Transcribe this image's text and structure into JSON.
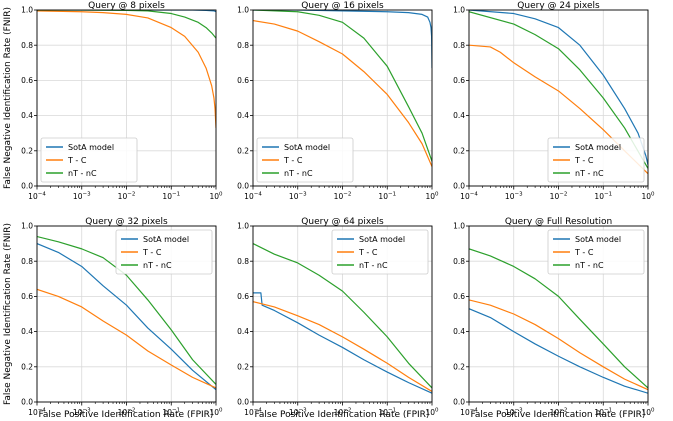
{
  "figure": {
    "ylabel_top": "False Negative Identification Rate (FNIR)",
    "ylabel_bottom": "False Negative Identification Rate (FNIR)",
    "xlabel_bottom": "False Positive Identification Rate (FPIR)"
  },
  "colors": {
    "sota": "#1f77b4",
    "tc": "#ff7f0e",
    "ntnc": "#2ca02c"
  },
  "chart_data": [
    {
      "type": "line",
      "title": "Query @ 8 pixels",
      "xscale": "log",
      "xlim": [
        0.0001,
        1
      ],
      "ylim": [
        0,
        1
      ],
      "xticks": [
        0.0001,
        0.001,
        0.01,
        0.1,
        1
      ],
      "xtick_labels": [
        "10-4",
        "10-3",
        "10-2",
        "10-1",
        "100"
      ],
      "yticks": [
        "0.0",
        "0.2",
        "0.4",
        "0.6",
        "0.8",
        "1.0"
      ],
      "grid": true,
      "legend": "bottom-left",
      "series": [
        {
          "name": "SotA model",
          "color": "#1f77b4",
          "x": [
            0.0001,
            0.001,
            0.01,
            0.1,
            0.3,
            0.6,
            0.9,
            1
          ],
          "y": [
            1.0,
            1.0,
            1.0,
            1.0,
            1.0,
            0.998,
            0.995,
            0.99
          ]
        },
        {
          "name": "T - C",
          "color": "#ff7f0e",
          "x": [
            0.0001,
            0.001,
            0.003,
            0.01,
            0.03,
            0.1,
            0.2,
            0.4,
            0.6,
            0.8,
            0.9,
            0.95,
            1
          ],
          "y": [
            0.995,
            0.99,
            0.985,
            0.975,
            0.955,
            0.9,
            0.85,
            0.76,
            0.67,
            0.57,
            0.5,
            0.44,
            0.33
          ]
        },
        {
          "name": "nT - nC",
          "color": "#2ca02c",
          "x": [
            0.0001,
            0.001,
            0.01,
            0.03,
            0.1,
            0.2,
            0.4,
            0.6,
            0.8,
            1
          ],
          "y": [
            1.0,
            1.0,
            0.998,
            0.995,
            0.98,
            0.96,
            0.93,
            0.9,
            0.87,
            0.84
          ]
        }
      ]
    },
    {
      "type": "line",
      "title": "Query @ 16 pixels",
      "xscale": "log",
      "xlim": [
        0.0001,
        1
      ],
      "ylim": [
        0,
        1
      ],
      "xticks": [
        0.0001,
        0.001,
        0.01,
        0.1,
        1
      ],
      "xtick_labels": [
        "10-4",
        "10-3",
        "10-2",
        "10-1",
        "100"
      ],
      "yticks": [
        "0.0",
        "0.2",
        "0.4",
        "0.6",
        "0.8",
        "1.0"
      ],
      "grid": true,
      "legend": "bottom-left",
      "series": [
        {
          "name": "SotA model",
          "color": "#1f77b4",
          "x": [
            0.0001,
            0.001,
            0.01,
            0.1,
            0.3,
            0.6,
            0.8,
            0.9,
            0.95,
            0.98,
            1
          ],
          "y": [
            1.0,
            1.0,
            0.995,
            0.99,
            0.985,
            0.975,
            0.96,
            0.93,
            0.9,
            0.85,
            0.67
          ]
        },
        {
          "name": "T - C",
          "color": "#ff7f0e",
          "x": [
            0.0001,
            0.0003,
            0.001,
            0.003,
            0.01,
            0.03,
            0.1,
            0.3,
            0.6,
            1
          ],
          "y": [
            0.94,
            0.92,
            0.88,
            0.82,
            0.75,
            0.65,
            0.52,
            0.36,
            0.24,
            0.11
          ]
        },
        {
          "name": "nT - nC",
          "color": "#2ca02c",
          "x": [
            0.0001,
            0.001,
            0.003,
            0.01,
            0.03,
            0.1,
            0.3,
            0.6,
            1
          ],
          "y": [
            1.0,
            0.99,
            0.97,
            0.93,
            0.84,
            0.68,
            0.45,
            0.3,
            0.14
          ]
        }
      ]
    },
    {
      "type": "line",
      "title": "Query @ 24 pixels",
      "xscale": "log",
      "xlim": [
        0.0001,
        1
      ],
      "ylim": [
        0,
        1
      ],
      "xticks": [
        0.0001,
        0.001,
        0.01,
        0.1,
        1
      ],
      "xtick_labels": [
        "10-4",
        "10-3",
        "10-2",
        "10-1",
        "100"
      ],
      "yticks": [
        "0.0",
        "0.2",
        "0.4",
        "0.6",
        "0.8",
        "1.0"
      ],
      "grid": true,
      "legend": "bottom-right",
      "series": [
        {
          "name": "SotA model",
          "color": "#1f77b4",
          "x": [
            0.0001,
            0.001,
            0.003,
            0.01,
            0.03,
            0.1,
            0.3,
            0.6,
            0.9,
            1
          ],
          "y": [
            1.0,
            0.98,
            0.95,
            0.9,
            0.8,
            0.63,
            0.44,
            0.3,
            0.17,
            0.12
          ]
        },
        {
          "name": "T - C",
          "color": "#ff7f0e",
          "x": [
            0.0001,
            0.0003,
            0.0005,
            0.001,
            0.003,
            0.01,
            0.03,
            0.1,
            0.3,
            1
          ],
          "y": [
            0.8,
            0.79,
            0.76,
            0.7,
            0.62,
            0.54,
            0.44,
            0.32,
            0.2,
            0.07
          ]
        },
        {
          "name": "nT - nC",
          "color": "#2ca02c",
          "x": [
            0.0001,
            0.001,
            0.003,
            0.01,
            0.03,
            0.1,
            0.3,
            1
          ],
          "y": [
            0.99,
            0.92,
            0.86,
            0.78,
            0.66,
            0.5,
            0.33,
            0.1
          ]
        }
      ]
    },
    {
      "type": "line",
      "title": "Query @ 32 pixels",
      "xscale": "log",
      "xlim": [
        0.0001,
        1
      ],
      "ylim": [
        0,
        1
      ],
      "xticks": [
        0.0001,
        0.001,
        0.01,
        0.1,
        1
      ],
      "xtick_labels": [
        "10-4",
        "10-3",
        "10-2",
        "10-1",
        "100"
      ],
      "yticks": [
        "0.0",
        "0.2",
        "0.4",
        "0.6",
        "0.8",
        "1.0"
      ],
      "grid": true,
      "legend": "top-right",
      "series": [
        {
          "name": "SotA model",
          "color": "#1f77b4",
          "x": [
            0.0001,
            0.0003,
            0.001,
            0.003,
            0.01,
            0.03,
            0.1,
            0.3,
            1
          ],
          "y": [
            0.9,
            0.85,
            0.77,
            0.66,
            0.55,
            0.42,
            0.3,
            0.18,
            0.07
          ]
        },
        {
          "name": "T - C",
          "color": "#ff7f0e",
          "x": [
            0.0001,
            0.0003,
            0.001,
            0.003,
            0.01,
            0.03,
            0.1,
            0.3,
            1
          ],
          "y": [
            0.64,
            0.6,
            0.54,
            0.46,
            0.38,
            0.29,
            0.21,
            0.14,
            0.08
          ]
        },
        {
          "name": "nT - nC",
          "color": "#2ca02c",
          "x": [
            0.0001,
            0.0003,
            0.001,
            0.003,
            0.01,
            0.03,
            0.1,
            0.3,
            1
          ],
          "y": [
            0.94,
            0.91,
            0.87,
            0.82,
            0.72,
            0.58,
            0.41,
            0.24,
            0.1
          ]
        }
      ]
    },
    {
      "type": "line",
      "title": "Query @ 64 pixels",
      "xscale": "log",
      "xlim": [
        0.0001,
        1
      ],
      "ylim": [
        0,
        1
      ],
      "xticks": [
        0.0001,
        0.001,
        0.01,
        0.1,
        1
      ],
      "xtick_labels": [
        "10-4",
        "10-3",
        "10-2",
        "10-1",
        "100"
      ],
      "yticks": [
        "0.0",
        "0.2",
        "0.4",
        "0.6",
        "0.8",
        "1.0"
      ],
      "grid": true,
      "legend": "top-right",
      "series": [
        {
          "name": "SotA model",
          "color": "#1f77b4",
          "x": [
            0.0001,
            0.00015,
            0.00016,
            0.0003,
            0.001,
            0.003,
            0.01,
            0.03,
            0.1,
            0.3,
            1
          ],
          "y": [
            0.62,
            0.62,
            0.55,
            0.52,
            0.45,
            0.38,
            0.31,
            0.24,
            0.17,
            0.11,
            0.05
          ]
        },
        {
          "name": "T - C",
          "color": "#ff7f0e",
          "x": [
            0.0001,
            0.0003,
            0.001,
            0.003,
            0.01,
            0.03,
            0.1,
            0.3,
            1
          ],
          "y": [
            0.57,
            0.54,
            0.49,
            0.44,
            0.37,
            0.3,
            0.22,
            0.14,
            0.06
          ]
        },
        {
          "name": "nT - nC",
          "color": "#2ca02c",
          "x": [
            0.0001,
            0.0003,
            0.001,
            0.003,
            0.01,
            0.03,
            0.1,
            0.3,
            1
          ],
          "y": [
            0.9,
            0.84,
            0.79,
            0.72,
            0.63,
            0.51,
            0.37,
            0.22,
            0.08
          ]
        }
      ]
    },
    {
      "type": "line",
      "title": "Query @ Full Resolution",
      "xscale": "log",
      "xlim": [
        0.0001,
        1
      ],
      "ylim": [
        0,
        1
      ],
      "xticks": [
        0.0001,
        0.001,
        0.01,
        0.1,
        1
      ],
      "xtick_labels": [
        "10-4",
        "10-3",
        "10-2",
        "10-1",
        "100"
      ],
      "yticks": [
        "0.0",
        "0.2",
        "0.4",
        "0.6",
        "0.8",
        "1.0"
      ],
      "grid": true,
      "legend": "top-right",
      "series": [
        {
          "name": "SotA model",
          "color": "#1f77b4",
          "x": [
            0.0001,
            0.0003,
            0.001,
            0.003,
            0.01,
            0.03,
            0.1,
            0.3,
            1
          ],
          "y": [
            0.53,
            0.48,
            0.4,
            0.33,
            0.26,
            0.2,
            0.14,
            0.09,
            0.05
          ]
        },
        {
          "name": "T - C",
          "color": "#ff7f0e",
          "x": [
            0.0001,
            0.0003,
            0.001,
            0.003,
            0.01,
            0.03,
            0.1,
            0.3,
            1
          ],
          "y": [
            0.58,
            0.55,
            0.5,
            0.44,
            0.36,
            0.28,
            0.2,
            0.13,
            0.07
          ]
        },
        {
          "name": "nT - nC",
          "color": "#2ca02c",
          "x": [
            0.0001,
            0.0003,
            0.001,
            0.003,
            0.01,
            0.03,
            0.1,
            0.3,
            1
          ],
          "y": [
            0.87,
            0.83,
            0.77,
            0.7,
            0.6,
            0.47,
            0.33,
            0.2,
            0.08
          ]
        }
      ]
    }
  ]
}
